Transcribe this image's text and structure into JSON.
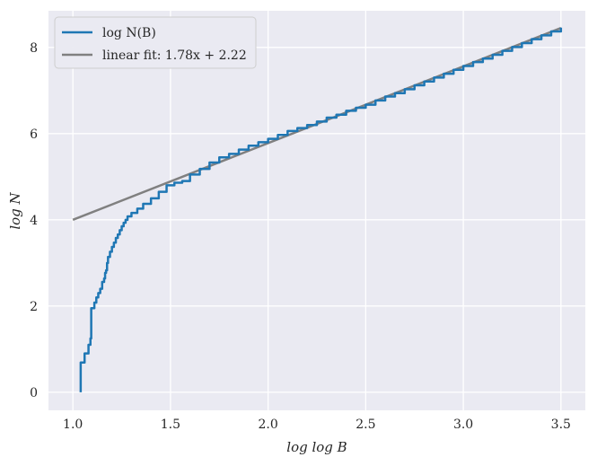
{
  "chart_data": {
    "type": "line",
    "xlabel": "log log B",
    "ylabel": "log N",
    "xlim": [
      0.875,
      3.625
    ],
    "ylim": [
      -0.42,
      8.85
    ],
    "xticks": [
      1.0,
      1.5,
      2.0,
      2.5,
      3.0,
      3.5
    ],
    "xtick_labels": [
      "1.0",
      "1.5",
      "2.0",
      "2.5",
      "3.0",
      "3.5"
    ],
    "yticks": [
      0,
      2,
      4,
      6,
      8
    ],
    "ytick_labels": [
      "0",
      "2",
      "4",
      "6",
      "8"
    ],
    "grid": true,
    "legend_position": "top-left",
    "series": [
      {
        "name": "log N(B)",
        "color": "#1f77b4",
        "step": true,
        "points": [
          [
            1.04,
            0.0
          ],
          [
            1.04,
            0.69
          ],
          [
            1.06,
            0.9
          ],
          [
            1.08,
            1.1
          ],
          [
            1.09,
            1.25
          ],
          [
            1.094,
            1.39
          ],
          [
            1.094,
            1.95
          ],
          [
            1.11,
            2.08
          ],
          [
            1.12,
            2.2
          ],
          [
            1.13,
            2.3
          ],
          [
            1.14,
            2.4
          ],
          [
            1.15,
            2.56
          ],
          [
            1.16,
            2.64
          ],
          [
            1.165,
            2.77
          ],
          [
            1.17,
            2.83
          ],
          [
            1.175,
            3.0
          ],
          [
            1.18,
            3.14
          ],
          [
            1.19,
            3.26
          ],
          [
            1.2,
            3.37
          ],
          [
            1.21,
            3.47
          ],
          [
            1.22,
            3.58
          ],
          [
            1.23,
            3.66
          ],
          [
            1.24,
            3.76
          ],
          [
            1.25,
            3.85
          ],
          [
            1.26,
            3.93
          ],
          [
            1.27,
            4.0
          ],
          [
            1.28,
            4.08
          ],
          [
            1.3,
            4.16
          ],
          [
            1.33,
            4.26
          ],
          [
            1.36,
            4.37
          ],
          [
            1.4,
            4.5
          ],
          [
            1.44,
            4.65
          ],
          [
            1.48,
            4.8
          ],
          [
            1.52,
            4.86
          ],
          [
            1.56,
            4.9
          ],
          [
            1.6,
            5.05
          ],
          [
            1.65,
            5.18
          ],
          [
            1.7,
            5.33
          ],
          [
            1.75,
            5.45
          ],
          [
            1.8,
            5.53
          ],
          [
            1.85,
            5.63
          ],
          [
            1.9,
            5.72
          ],
          [
            1.95,
            5.8
          ],
          [
            2.0,
            5.88
          ],
          [
            2.05,
            5.97
          ],
          [
            2.1,
            6.06
          ],
          [
            2.15,
            6.13
          ],
          [
            2.2,
            6.2
          ],
          [
            2.25,
            6.28
          ],
          [
            2.3,
            6.37
          ],
          [
            2.35,
            6.44
          ],
          [
            2.4,
            6.53
          ],
          [
            2.45,
            6.6
          ],
          [
            2.5,
            6.67
          ],
          [
            2.55,
            6.77
          ],
          [
            2.6,
            6.86
          ],
          [
            2.65,
            6.94
          ],
          [
            2.7,
            7.03
          ],
          [
            2.75,
            7.12
          ],
          [
            2.8,
            7.21
          ],
          [
            2.85,
            7.3
          ],
          [
            2.9,
            7.39
          ],
          [
            2.95,
            7.48
          ],
          [
            3.0,
            7.57
          ],
          [
            3.05,
            7.66
          ],
          [
            3.1,
            7.74
          ],
          [
            3.15,
            7.83
          ],
          [
            3.2,
            7.92
          ],
          [
            3.25,
            8.01
          ],
          [
            3.3,
            8.1
          ],
          [
            3.35,
            8.19
          ],
          [
            3.4,
            8.28
          ],
          [
            3.45,
            8.37
          ],
          [
            3.5,
            8.46
          ]
        ]
      },
      {
        "name": "linear fit: 1.78x + 2.22",
        "color": "#808080",
        "step": false,
        "points": [
          [
            1.0,
            4.0
          ],
          [
            3.5,
            8.45
          ]
        ]
      }
    ]
  }
}
